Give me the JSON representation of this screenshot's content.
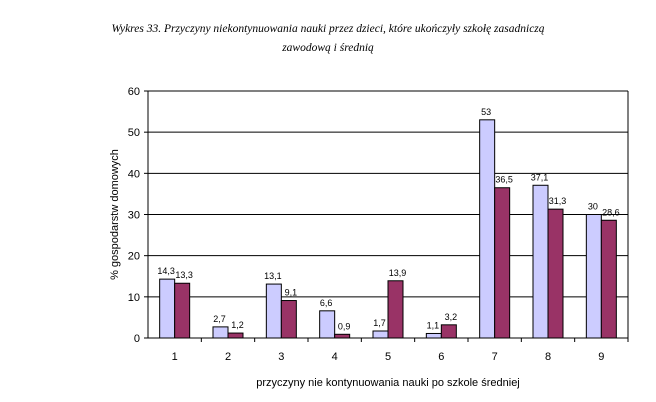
{
  "title": {
    "line1": "Wykres 33. Przyczyny niekontynuowania nauki przez dzieci, które ukończyły szkołę zasadniczą",
    "line2": "zawodową i średnią"
  },
  "chart_data": {
    "type": "bar",
    "categories": [
      "1",
      "2",
      "3",
      "4",
      "5",
      "6",
      "7",
      "8",
      "9"
    ],
    "series": [
      {
        "values": [
          14.3,
          2.7,
          13.1,
          6.6,
          1.7,
          1.1,
          53,
          37.1,
          30
        ],
        "labels": [
          "14,3",
          "2,7",
          "13,1",
          "6,6",
          "1,7",
          "1,1",
          "53",
          "37,1",
          "30"
        ],
        "color": "#ccccff"
      },
      {
        "values": [
          13.3,
          1.2,
          9.1,
          0.9,
          13.9,
          3.2,
          36.5,
          31.3,
          28.6
        ],
        "labels": [
          "13,3",
          "1,2",
          "9,1",
          "0,9",
          "13,9",
          "3,2",
          "36,5",
          "31,3",
          "28,6"
        ],
        "color": "#993366"
      }
    ],
    "xlabel": "przyczyny nie kontynuowania nauki po szkole średniej",
    "ylabel": "% gospodarstw domowych",
    "ylim": [
      0,
      60
    ],
    "yticks": [
      "0",
      "10",
      "20",
      "30",
      "40",
      "50",
      "60"
    ],
    "grid": true
  }
}
